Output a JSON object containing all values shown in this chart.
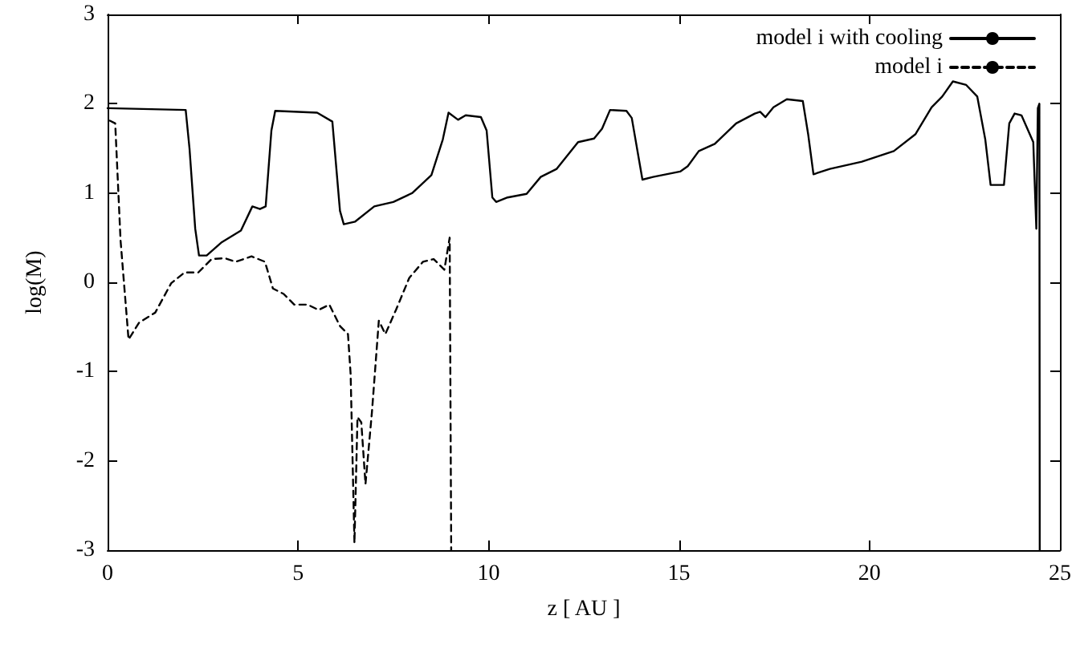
{
  "chart_data": {
    "type": "line",
    "xlabel": "z [ AU ]",
    "ylabel": "log(M)",
    "xlim": [
      0,
      25
    ],
    "xticks": [
      0,
      5,
      10,
      15,
      20,
      25
    ],
    "ylim": [
      -3,
      3
    ],
    "yticks": [
      -3,
      -2,
      -1,
      0,
      1,
      2,
      3
    ],
    "grid": false,
    "legend": "top right",
    "marker": "none",
    "series": [
      {
        "name": "model i with cooling",
        "color": "#000000",
        "line_style": "solid",
        "x": [
          0,
          2.05,
          2.15,
          2.3,
          2.4,
          2.6,
          3.0,
          3.5,
          3.8,
          4.0,
          4.15,
          4.3,
          4.4,
          5.5,
          5.9,
          6.1,
          6.2,
          6.5,
          7.0,
          7.5,
          8.0,
          8.5,
          8.8,
          8.95,
          9.2,
          9.4,
          9.8,
          9.95,
          10.1,
          10.2,
          10.5,
          11.0,
          11.37,
          11.79,
          12.35,
          12.77,
          12.98,
          13.19,
          13.62,
          13.76,
          14.04,
          14.32,
          15.03,
          15.23,
          15.52,
          15.94,
          16.5,
          16.99,
          17.13,
          17.27,
          17.48,
          17.83,
          18.25,
          18.39,
          18.53,
          18.96,
          19.8,
          20.64,
          21.21,
          21.63,
          21.91,
          22.19,
          22.54,
          22.83,
          23.04,
          23.18,
          23.53,
          23.67,
          23.81,
          23.99,
          24.3,
          24.38,
          24.42,
          24.46,
          24.47
        ],
        "values": [
          1.95,
          1.93,
          1.5,
          0.6,
          0.3,
          0.3,
          0.45,
          0.58,
          0.85,
          0.82,
          0.85,
          1.7,
          1.92,
          1.9,
          1.8,
          0.8,
          0.65,
          0.68,
          0.85,
          0.9,
          1.0,
          1.2,
          1.6,
          1.9,
          1.82,
          1.87,
          1.85,
          1.7,
          0.95,
          0.9,
          0.95,
          0.99,
          1.18,
          1.27,
          1.57,
          1.61,
          1.72,
          1.93,
          1.92,
          1.84,
          1.15,
          1.18,
          1.24,
          1.3,
          1.47,
          1.55,
          1.78,
          1.89,
          1.91,
          1.85,
          1.96,
          2.05,
          2.03,
          1.66,
          1.21,
          1.27,
          1.35,
          1.47,
          1.66,
          1.96,
          2.08,
          2.25,
          2.21,
          2.08,
          1.6,
          1.09,
          1.09,
          1.78,
          1.89,
          1.87,
          1.57,
          0.6,
          1.95,
          2.0,
          -3
        ]
      },
      {
        "name": "model i",
        "color": "#000000",
        "line_style": "dashed",
        "x": [
          0.06,
          0.2,
          0.34,
          0.55,
          0.83,
          1.25,
          1.67,
          2.02,
          2.38,
          2.73,
          3.08,
          3.36,
          3.78,
          4.13,
          4.34,
          4.62,
          4.9,
          5.25,
          5.54,
          5.82,
          6.1,
          6.31,
          6.38,
          6.48,
          6.56,
          6.66,
          6.77,
          6.94,
          7.12,
          7.29,
          7.57,
          7.92,
          8.28,
          8.56,
          8.84,
          8.98,
          9.02
        ],
        "values": [
          1.81,
          1.78,
          0.47,
          -0.64,
          -0.45,
          -0.34,
          -0.01,
          0.11,
          0.11,
          0.26,
          0.27,
          0.23,
          0.29,
          0.23,
          -0.07,
          -0.13,
          -0.25,
          -0.25,
          -0.31,
          -0.25,
          -0.49,
          -0.58,
          -1.03,
          -2.92,
          -1.51,
          -1.57,
          -2.26,
          -1.45,
          -0.43,
          -0.58,
          -0.31,
          0.05,
          0.23,
          0.26,
          0.14,
          0.5,
          -3
        ]
      }
    ]
  }
}
